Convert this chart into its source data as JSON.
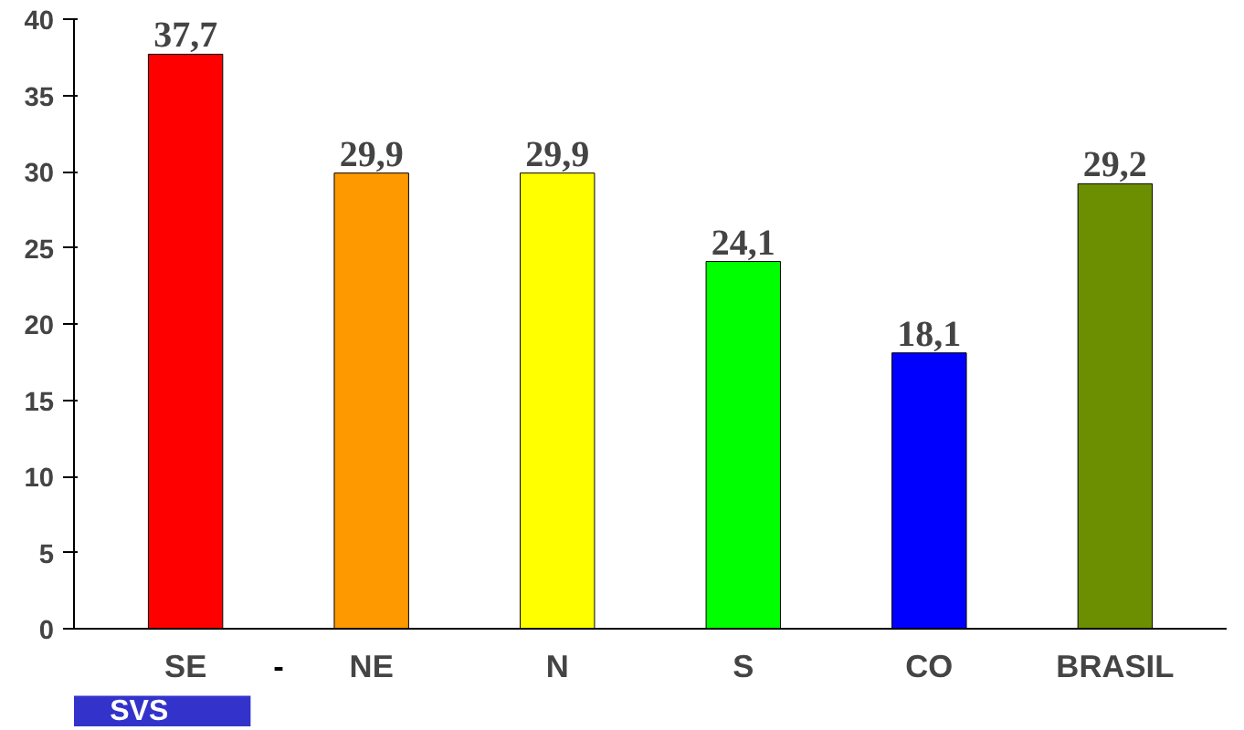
{
  "chart_data": {
    "type": "bar",
    "categories": [
      "SE",
      "NE",
      "N",
      "S",
      "CO",
      "BRASIL"
    ],
    "values": [
      37.7,
      29.9,
      29.9,
      24.1,
      18.1,
      29.2
    ],
    "colors": [
      "#ff0000",
      "#ff9900",
      "#ffff00",
      "#00ff00",
      "#0000ff",
      "#6b8f00"
    ],
    "value_labels": [
      "37,7",
      "29,9",
      "29,9",
      "24,1",
      "18,1",
      "29,2"
    ],
    "ylim": [
      0,
      40
    ],
    "yticks": [
      0,
      5,
      10,
      15,
      20,
      25,
      30,
      35,
      40
    ],
    "grid": false,
    "annotations": [
      "-",
      "SVS"
    ]
  }
}
